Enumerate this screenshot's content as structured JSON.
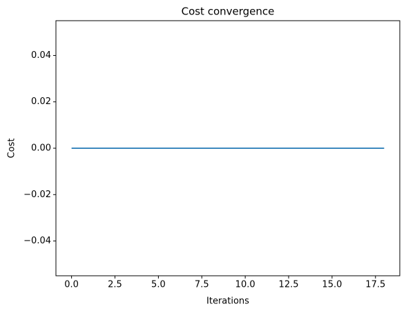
{
  "chart_data": {
    "type": "line",
    "title": "Cost convergence",
    "x_label": "Iterations",
    "y_label": "Cost",
    "x": [
      0,
      1,
      2,
      3,
      4,
      5,
      6,
      7,
      8,
      9,
      10,
      11,
      12,
      13,
      14,
      15,
      16,
      17,
      18
    ],
    "series": [
      {
        "color": "#1f77b4",
        "values": [
          0,
          0,
          0,
          0,
          0,
          0,
          0,
          0,
          0,
          0,
          0,
          0,
          0,
          0,
          0,
          0,
          0,
          0,
          0
        ]
      }
    ],
    "xlim": [
      -0.9,
      18.9
    ],
    "xticks": [
      {
        "value": 0,
        "label": "0.0"
      },
      2.5,
      {
        "value": 5,
        "label": "5.0"
      },
      7.5,
      {
        "value": 10,
        "label": "10.0"
      },
      12.5,
      {
        "value": 15,
        "label": "15.0"
      },
      17.5
    ],
    "ylim": [
      -0.055,
      0.055
    ],
    "yticks": [
      {
        "value": -0.04,
        "label": "−0.04"
      },
      {
        "value": -0.02,
        "label": "−0.02"
      },
      {
        "value": 0,
        "label": "0.00"
      },
      0.02,
      0.04
    ]
  }
}
